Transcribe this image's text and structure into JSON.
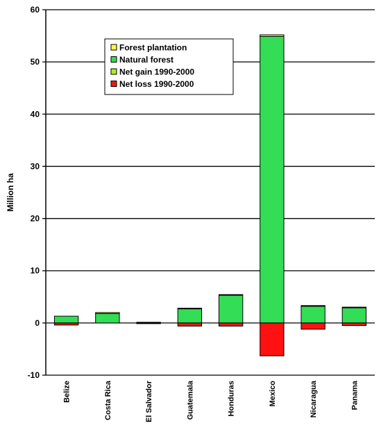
{
  "chart_data": {
    "type": "bar",
    "stacked": true,
    "title": "",
    "xlabel": "",
    "ylabel": "Million ha",
    "ylim": [
      -10,
      60
    ],
    "yticks": [
      -10,
      0,
      10,
      20,
      30,
      40,
      50,
      60
    ],
    "grid": "horizontal",
    "legend_position": "top-left",
    "categories": [
      "Belize",
      "Costa Rica",
      "El Salvador",
      "Guatemala",
      "Honduras",
      "Mexico",
      "Nicaragua",
      "Panama"
    ],
    "series": [
      {
        "name": "Forest plantation",
        "color": "#ffff33",
        "values": [
          0.0,
          0.2,
          0.0,
          0.1,
          0.05,
          0.3,
          0.05,
          0.05
        ]
      },
      {
        "name": "Natural forest",
        "color": "#33dd55",
        "values": [
          1.3,
          1.8,
          0.1,
          2.7,
          5.3,
          54.9,
          3.2,
          2.9
        ]
      },
      {
        "name": "Net gain 1990-2000",
        "color": "#aaee22",
        "values": [
          0,
          0,
          0,
          0,
          0,
          0,
          0,
          0
        ]
      },
      {
        "name": "Net loss 1990-2000",
        "color": "#ff1111",
        "values": [
          -0.4,
          0,
          -0.1,
          -0.6,
          -0.6,
          -6.3,
          -1.2,
          -0.5
        ]
      }
    ]
  }
}
